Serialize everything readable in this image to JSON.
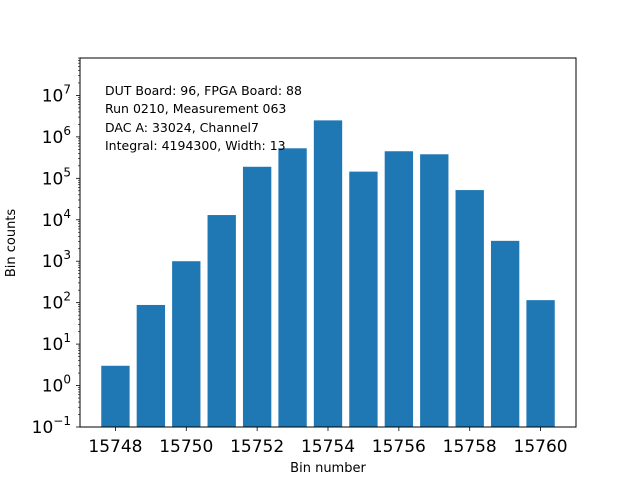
{
  "chart_data": {
    "type": "bar",
    "title": "",
    "xlabel": "Bin number",
    "ylabel": "Bin counts",
    "yscale": "log",
    "ylim": [
      0.1,
      80000000
    ],
    "xlim": [
      15747,
      15761
    ],
    "grid": false,
    "x": [
      15748,
      15749,
      15750,
      15751,
      15752,
      15753,
      15754,
      15755,
      15756,
      15757,
      15758,
      15759,
      15760
    ],
    "values": [
      3,
      88,
      1000,
      13000,
      190000,
      530000,
      2500000,
      145000,
      450000,
      380000,
      52000,
      3100,
      115
    ],
    "bar_color": "#1f77b4",
    "x_ticks": [
      "15748",
      "15750",
      "15752",
      "15754",
      "15756",
      "15758",
      "15760"
    ],
    "y_ticks": [
      {
        "base": "10",
        "exp": "−1"
      },
      {
        "base": "10",
        "exp": "0"
      },
      {
        "base": "10",
        "exp": "1"
      },
      {
        "base": "10",
        "exp": "2"
      },
      {
        "base": "10",
        "exp": "3"
      },
      {
        "base": "10",
        "exp": "4"
      },
      {
        "base": "10",
        "exp": "5"
      },
      {
        "base": "10",
        "exp": "6"
      },
      {
        "base": "10",
        "exp": "7"
      }
    ],
    "annotations": [
      "DUT Board: 96, FPGA Board: 88",
      "Run 0210, Measurement 063",
      "DAC A: 33024, Channel7",
      "Integral: 4194300, Width: 13"
    ]
  }
}
